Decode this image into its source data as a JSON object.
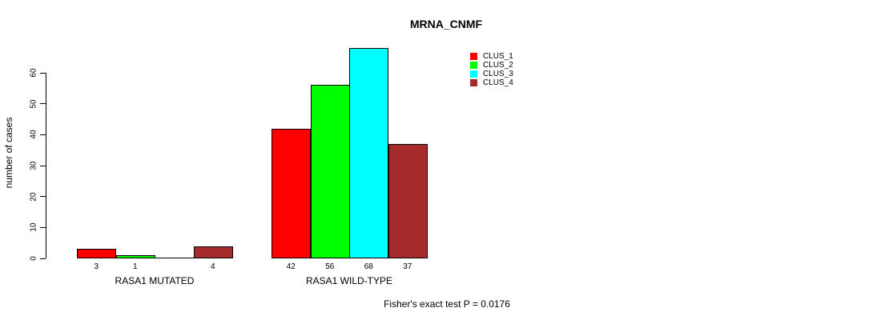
{
  "title": "MRNA_CNMF",
  "footer_annotation": "Fisher's exact test P = 0.0176",
  "chart_data": {
    "type": "bar",
    "title": "MRNA_CNMF",
    "xlabel": "",
    "ylabel": "number of cases",
    "ylim": [
      0,
      68
    ],
    "yticks": [
      0,
      10,
      20,
      30,
      40,
      50,
      60
    ],
    "grid": false,
    "legend_position": "top-right",
    "series": [
      {
        "name": "CLUS_1",
        "color": "#FF0000",
        "values": [
          3,
          42
        ]
      },
      {
        "name": "CLUS_2",
        "color": "#00FF00",
        "values": [
          1,
          56
        ]
      },
      {
        "name": "CLUS_3",
        "color": "#00FFFF",
        "values": [
          0,
          68
        ]
      },
      {
        "name": "CLUS_4",
        "color": "#A52A2A",
        "values": [
          4,
          37
        ]
      }
    ],
    "groups": [
      {
        "label": "RASA1 MUTATED",
        "values": [
          3,
          1,
          0,
          4
        ],
        "bar_labels": [
          "3",
          "1",
          "",
          "4"
        ]
      },
      {
        "label": "RASA1 WILD-TYPE",
        "values": [
          42,
          56,
          68,
          37
        ],
        "bar_labels": [
          "42",
          "56",
          "68",
          "37"
        ]
      }
    ],
    "annotation": "Fisher's exact test P = 0.0176"
  }
}
